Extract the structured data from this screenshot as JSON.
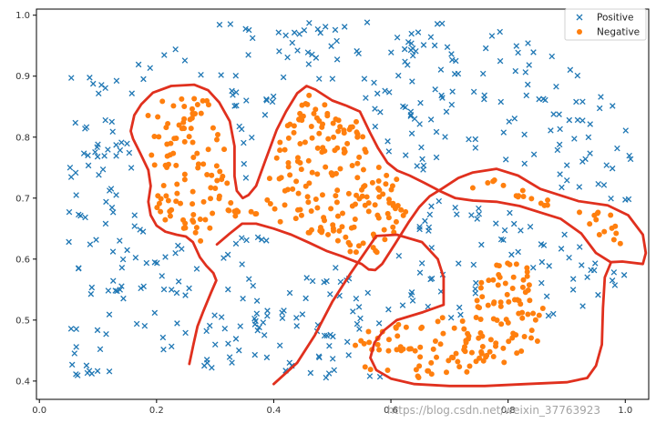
{
  "chart_data": {
    "type": "scatter",
    "title": "",
    "xlabel": "",
    "ylabel": "",
    "xlim": [
      -0.005,
      1.04
    ],
    "ylim": [
      0.37,
      1.01
    ],
    "x_ticks": [
      0.0,
      0.2,
      0.4,
      0.6,
      0.8,
      1.0
    ],
    "x_tick_labels": [
      "0.0",
      "0.2",
      "0.4",
      "0.6",
      "0.8",
      "1.0"
    ],
    "y_ticks": [
      0.4,
      0.5,
      0.6,
      0.7,
      0.8,
      0.9,
      1.0
    ],
    "y_tick_labels": [
      "0.4",
      "0.5",
      "0.6",
      "0.7",
      "0.8",
      "0.9",
      "1.0"
    ],
    "grid": false,
    "legend_position": "top-right",
    "decision_boundary_color": "#e0301e",
    "series": [
      {
        "name": "Positive",
        "marker": "x",
        "color": "#1f77b4",
        "points": []
      },
      {
        "name": "Negative",
        "marker": "o",
        "color": "#ff7f0e",
        "points": []
      }
    ],
    "boundary_curves": [
      [
        [
          0.256,
          0.428
        ],
        [
          0.263,
          0.46
        ],
        [
          0.27,
          0.49
        ],
        [
          0.28,
          0.515
        ],
        [
          0.293,
          0.545
        ],
        [
          0.302,
          0.565
        ],
        [
          0.297,
          0.577
        ],
        [
          0.285,
          0.589
        ],
        [
          0.274,
          0.603
        ],
        [
          0.262,
          0.628
        ],
        [
          0.25,
          0.637
        ],
        [
          0.234,
          0.64
        ],
        [
          0.215,
          0.645
        ],
        [
          0.2,
          0.655
        ],
        [
          0.19,
          0.672
        ],
        [
          0.186,
          0.694
        ],
        [
          0.19,
          0.72
        ],
        [
          0.186,
          0.746
        ],
        [
          0.172,
          0.774
        ],
        [
          0.16,
          0.797
        ],
        [
          0.156,
          0.81
        ],
        [
          0.162,
          0.836
        ],
        [
          0.174,
          0.854
        ],
        [
          0.194,
          0.873
        ],
        [
          0.225,
          0.884
        ],
        [
          0.264,
          0.886
        ],
        [
          0.288,
          0.877
        ],
        [
          0.307,
          0.857
        ],
        [
          0.325,
          0.826
        ],
        [
          0.333,
          0.785
        ],
        [
          0.333,
          0.736
        ],
        [
          0.337,
          0.712
        ],
        [
          0.347,
          0.7
        ],
        [
          0.357,
          0.705
        ],
        [
          0.37,
          0.72
        ],
        [
          0.385,
          0.76
        ],
        [
          0.405,
          0.812
        ],
        [
          0.421,
          0.842
        ],
        [
          0.44,
          0.872
        ],
        [
          0.456,
          0.884
        ],
        [
          0.471,
          0.878
        ],
        [
          0.5,
          0.86
        ],
        [
          0.523,
          0.852
        ],
        [
          0.547,
          0.842
        ],
        [
          0.564,
          0.808
        ],
        [
          0.578,
          0.782
        ],
        [
          0.594,
          0.758
        ],
        [
          0.611,
          0.745
        ],
        [
          0.632,
          0.737
        ],
        [
          0.657,
          0.725
        ],
        [
          0.683,
          0.712
        ],
        [
          0.71,
          0.7
        ],
        [
          0.74,
          0.696
        ],
        [
          0.78,
          0.694
        ],
        [
          0.82,
          0.687
        ],
        [
          0.86,
          0.675
        ],
        [
          0.89,
          0.666
        ],
        [
          0.925,
          0.642
        ],
        [
          0.95,
          0.61
        ],
        [
          0.975,
          0.595
        ],
        [
          0.995,
          0.596
        ],
        [
          1.03,
          0.592
        ],
        [
          1.035,
          0.61
        ],
        [
          1.03,
          0.64
        ],
        [
          1.005,
          0.672
        ],
        [
          0.97,
          0.688
        ],
        [
          0.92,
          0.695
        ],
        [
          0.855,
          0.715
        ],
        [
          0.817,
          0.737
        ],
        [
          0.78,
          0.748
        ],
        [
          0.74,
          0.742
        ],
        [
          0.715,
          0.733
        ],
        [
          0.688,
          0.716
        ],
        [
          0.666,
          0.703
        ],
        [
          0.648,
          0.685
        ],
        [
          0.63,
          0.66
        ],
        [
          0.607,
          0.625
        ],
        [
          0.585,
          0.592
        ],
        [
          0.573,
          0.582
        ],
        [
          0.562,
          0.583
        ],
        [
          0.55,
          0.592
        ],
        [
          0.518,
          0.604
        ],
        [
          0.491,
          0.613
        ],
        [
          0.46,
          0.627
        ],
        [
          0.43,
          0.64
        ],
        [
          0.4,
          0.65
        ],
        [
          0.37,
          0.658
        ],
        [
          0.346,
          0.658
        ],
        [
          0.325,
          0.642
        ],
        [
          0.303,
          0.624
        ]
      ]
    ]
  },
  "legend": {
    "entries": [
      {
        "label": "Positive",
        "marker": "x",
        "color": "#1f77b4"
      },
      {
        "label": "Negative",
        "marker": "o",
        "color": "#ff7f0e"
      }
    ]
  },
  "watermark": "https://blog.csdn.net/weixin_37763923"
}
